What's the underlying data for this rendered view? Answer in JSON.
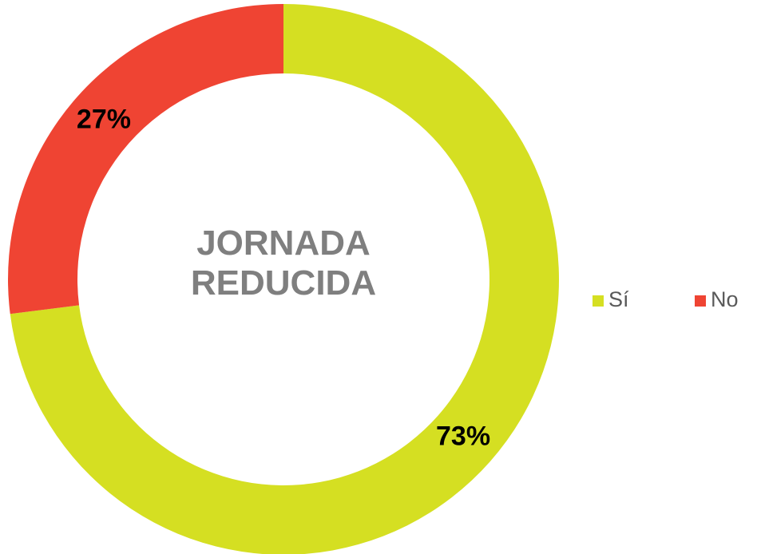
{
  "chart_data": {
    "type": "donut",
    "title": "JORNADA REDUCIDA",
    "categories": [
      "Sí",
      "No"
    ],
    "values": [
      73,
      27
    ],
    "value_labels": [
      "73%",
      "27%"
    ],
    "colors": [
      "#d5df22",
      "#ef4433"
    ],
    "legend": "right"
  }
}
